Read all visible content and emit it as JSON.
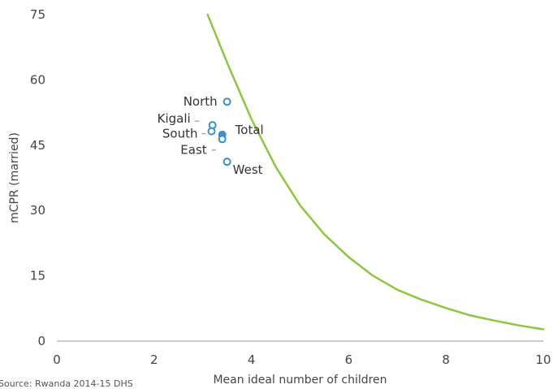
{
  "chart_data": {
    "type": "scatter",
    "xlabel": "Mean ideal number of children",
    "ylabel": "mCPR (married)",
    "xlim": [
      0,
      10
    ],
    "ylim": [
      0,
      75
    ],
    "x_ticks": [
      0,
      2,
      4,
      6,
      8,
      10
    ],
    "y_ticks": [
      0,
      15,
      30,
      45,
      60,
      75
    ],
    "grid": false,
    "legend": "none",
    "points": [
      {
        "label": "North",
        "x": 3.5,
        "y": 55.0,
        "highlight": false
      },
      {
        "label": "Kigali",
        "x": 3.2,
        "y": 49.6,
        "highlight": false
      },
      {
        "label": "South",
        "x": 3.18,
        "y": 48.2,
        "highlight": false
      },
      {
        "label": "Total",
        "x": 3.4,
        "y": 47.4,
        "highlight": true
      },
      {
        "label": "East",
        "x": 3.4,
        "y": 46.4,
        "highlight": false
      },
      {
        "label": "West",
        "x": 3.5,
        "y": 41.2,
        "highlight": false
      }
    ],
    "curve": {
      "x": [
        3.1,
        3.5,
        4.0,
        4.5,
        5.0,
        5.5,
        6.0,
        6.5,
        7.0,
        7.5,
        8.0,
        8.5,
        9.0,
        9.5,
        10.0
      ],
      "y": [
        75.0,
        64.0,
        51.0,
        40.0,
        31.2,
        24.5,
        19.3,
        15.0,
        11.8,
        9.5,
        7.6,
        5.9,
        4.7,
        3.6,
        2.7
      ]
    },
    "colors": {
      "curve": "#8dc63f",
      "point_stroke": "#3a8fcb",
      "point_fill": "#ffffff",
      "highlight_fill": "#3a8fcb",
      "axis": "#999999",
      "leader": "#888888"
    }
  },
  "source_note": "Source: Rwanda 2014-15 DHS"
}
